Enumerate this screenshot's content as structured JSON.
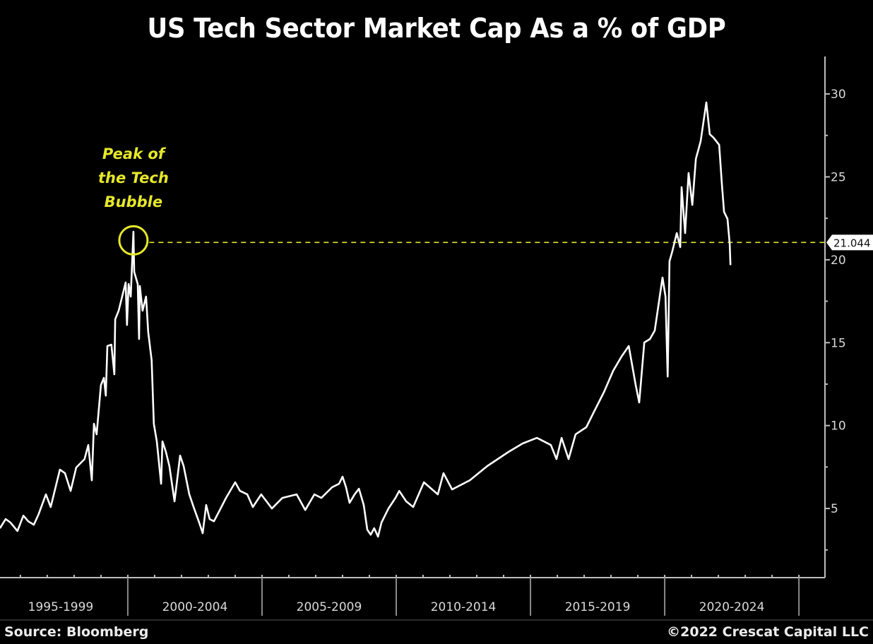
{
  "chart_data": {
    "type": "line",
    "title": "US Tech Sector Market Cap As a % of GDP",
    "xlabel": "",
    "ylabel": "",
    "xlim": [
      1995.24,
      2025.97
    ],
    "ylim": [
      0.83,
      32.26
    ],
    "y_axis_side": "right",
    "yticks": [
      5,
      10,
      15,
      20,
      25,
      30
    ],
    "ytick_labels": [
      "5",
      "10",
      "15",
      "20",
      "25",
      "30"
    ],
    "x_period_boundaries": [
      2000,
      2005,
      2010,
      2015,
      2020,
      2025
    ],
    "x_period_labels": [
      {
        "label": "1995-1999",
        "center": 1997.5
      },
      {
        "label": "2000-2004",
        "center": 2002.5
      },
      {
        "label": "2005-2009",
        "center": 2007.5
      },
      {
        "label": "2010-2014",
        "center": 2012.5
      },
      {
        "label": "2015-2019",
        "center": 2017.5
      },
      {
        "label": "2020-2024",
        "center": 2022.5
      }
    ],
    "grid": false,
    "legend": "none",
    "series": [
      {
        "name": "US Tech Sector Market Cap % of GDP",
        "color": "#ffffff",
        "points": [
          [
            1995.24,
            3.81
          ],
          [
            1995.45,
            4.36
          ],
          [
            1995.63,
            4.15
          ],
          [
            1995.89,
            3.64
          ],
          [
            1996.11,
            4.57
          ],
          [
            1996.29,
            4.23
          ],
          [
            1996.5,
            4.02
          ],
          [
            1996.68,
            4.66
          ],
          [
            1996.95,
            5.85
          ],
          [
            1997.13,
            5.09
          ],
          [
            1997.47,
            7.34
          ],
          [
            1997.66,
            7.13
          ],
          [
            1997.87,
            6.06
          ],
          [
            1998.08,
            7.47
          ],
          [
            1998.39,
            7.98
          ],
          [
            1998.53,
            8.83
          ],
          [
            1998.66,
            6.7
          ],
          [
            1998.74,
            10.11
          ],
          [
            1998.84,
            9.47
          ],
          [
            1999.0,
            12.45
          ],
          [
            1999.11,
            12.88
          ],
          [
            1999.18,
            11.81
          ],
          [
            1999.24,
            14.8
          ],
          [
            1999.39,
            14.88
          ],
          [
            1999.5,
            13.09
          ],
          [
            1999.53,
            16.41
          ],
          [
            1999.66,
            16.93
          ],
          [
            1999.92,
            18.63
          ],
          [
            1999.97,
            16.07
          ],
          [
            2000.03,
            18.54
          ],
          [
            2000.11,
            17.78
          ],
          [
            2000.21,
            21.7
          ],
          [
            2000.24,
            19.27
          ],
          [
            2000.37,
            18.54
          ],
          [
            2000.42,
            15.22
          ],
          [
            2000.45,
            18.42
          ],
          [
            2000.55,
            16.93
          ],
          [
            2000.68,
            17.78
          ],
          [
            2000.76,
            15.65
          ],
          [
            2000.89,
            13.94
          ],
          [
            2000.97,
            10.11
          ],
          [
            2001.08,
            9.05
          ],
          [
            2001.24,
            6.49
          ],
          [
            2001.29,
            9.05
          ],
          [
            2001.42,
            8.41
          ],
          [
            2001.55,
            7.56
          ],
          [
            2001.74,
            5.43
          ],
          [
            2001.95,
            8.19
          ],
          [
            2002.08,
            7.56
          ],
          [
            2002.29,
            5.85
          ],
          [
            2002.47,
            5.0
          ],
          [
            2002.66,
            4.15
          ],
          [
            2002.79,
            3.51
          ],
          [
            2002.92,
            5.21
          ],
          [
            2003.05,
            4.36
          ],
          [
            2003.21,
            4.23
          ],
          [
            2003.39,
            4.79
          ],
          [
            2003.66,
            5.64
          ],
          [
            2004.0,
            6.58
          ],
          [
            2004.18,
            6.06
          ],
          [
            2004.45,
            5.85
          ],
          [
            2004.66,
            5.09
          ],
          [
            2004.97,
            5.85
          ],
          [
            2005.37,
            5.0
          ],
          [
            2005.76,
            5.64
          ],
          [
            2006.29,
            5.85
          ],
          [
            2006.61,
            4.91
          ],
          [
            2006.95,
            5.85
          ],
          [
            2007.21,
            5.64
          ],
          [
            2007.61,
            6.28
          ],
          [
            2007.87,
            6.49
          ],
          [
            2008.0,
            6.92
          ],
          [
            2008.13,
            6.28
          ],
          [
            2008.26,
            5.34
          ],
          [
            2008.45,
            5.85
          ],
          [
            2008.61,
            6.19
          ],
          [
            2008.79,
            5.21
          ],
          [
            2008.92,
            3.72
          ],
          [
            2009.05,
            3.42
          ],
          [
            2009.18,
            3.81
          ],
          [
            2009.32,
            3.3
          ],
          [
            2009.45,
            4.15
          ],
          [
            2009.71,
            5.0
          ],
          [
            2009.97,
            5.64
          ],
          [
            2010.11,
            6.06
          ],
          [
            2010.37,
            5.43
          ],
          [
            2010.63,
            5.09
          ],
          [
            2011.03,
            6.58
          ],
          [
            2011.55,
            5.85
          ],
          [
            2011.76,
            7.13
          ],
          [
            2012.08,
            6.15
          ],
          [
            2012.74,
            6.7
          ],
          [
            2013.39,
            7.56
          ],
          [
            2014.18,
            8.41
          ],
          [
            2014.71,
            8.92
          ],
          [
            2015.24,
            9.26
          ],
          [
            2015.76,
            8.83
          ],
          [
            2015.97,
            7.98
          ],
          [
            2016.16,
            9.26
          ],
          [
            2016.42,
            7.98
          ],
          [
            2016.68,
            9.47
          ],
          [
            2017.08,
            9.9
          ],
          [
            2017.34,
            10.75
          ],
          [
            2017.74,
            12.03
          ],
          [
            2018.08,
            13.3
          ],
          [
            2018.39,
            14.16
          ],
          [
            2018.66,
            14.8
          ],
          [
            2018.92,
            12.45
          ],
          [
            2019.05,
            11.39
          ],
          [
            2019.24,
            15.01
          ],
          [
            2019.45,
            15.22
          ],
          [
            2019.63,
            15.73
          ],
          [
            2019.92,
            18.93
          ],
          [
            2020.03,
            17.78
          ],
          [
            2020.11,
            12.96
          ],
          [
            2020.18,
            19.91
          ],
          [
            2020.29,
            20.55
          ],
          [
            2020.45,
            21.61
          ],
          [
            2020.58,
            20.76
          ],
          [
            2020.63,
            24.38
          ],
          [
            2020.76,
            21.61
          ],
          [
            2020.89,
            25.23
          ],
          [
            2021.03,
            23.31
          ],
          [
            2021.16,
            26.08
          ],
          [
            2021.34,
            27.15
          ],
          [
            2021.55,
            29.49
          ],
          [
            2021.68,
            27.57
          ],
          [
            2021.82,
            27.36
          ],
          [
            2022.03,
            26.93
          ],
          [
            2022.13,
            24.59
          ],
          [
            2022.21,
            22.89
          ],
          [
            2022.34,
            22.46
          ],
          [
            2022.42,
            20.97
          ],
          [
            2022.45,
            19.69
          ]
        ]
      }
    ],
    "reference_line": {
      "value": 21.044,
      "label": "21.044",
      "style": "dashed",
      "color": "#e6e82a",
      "from_x": 2000.8
    },
    "annotations": [
      {
        "text_lines": [
          "Peak of",
          "the Tech",
          "Bubble"
        ],
        "target": [
          2000.21,
          21.0
        ],
        "marker": "circle",
        "color": "#e6e82a"
      }
    ]
  },
  "footer": {
    "source": "Source: Bloomberg",
    "copyright": "©2022 Crescat Capital LLC"
  }
}
